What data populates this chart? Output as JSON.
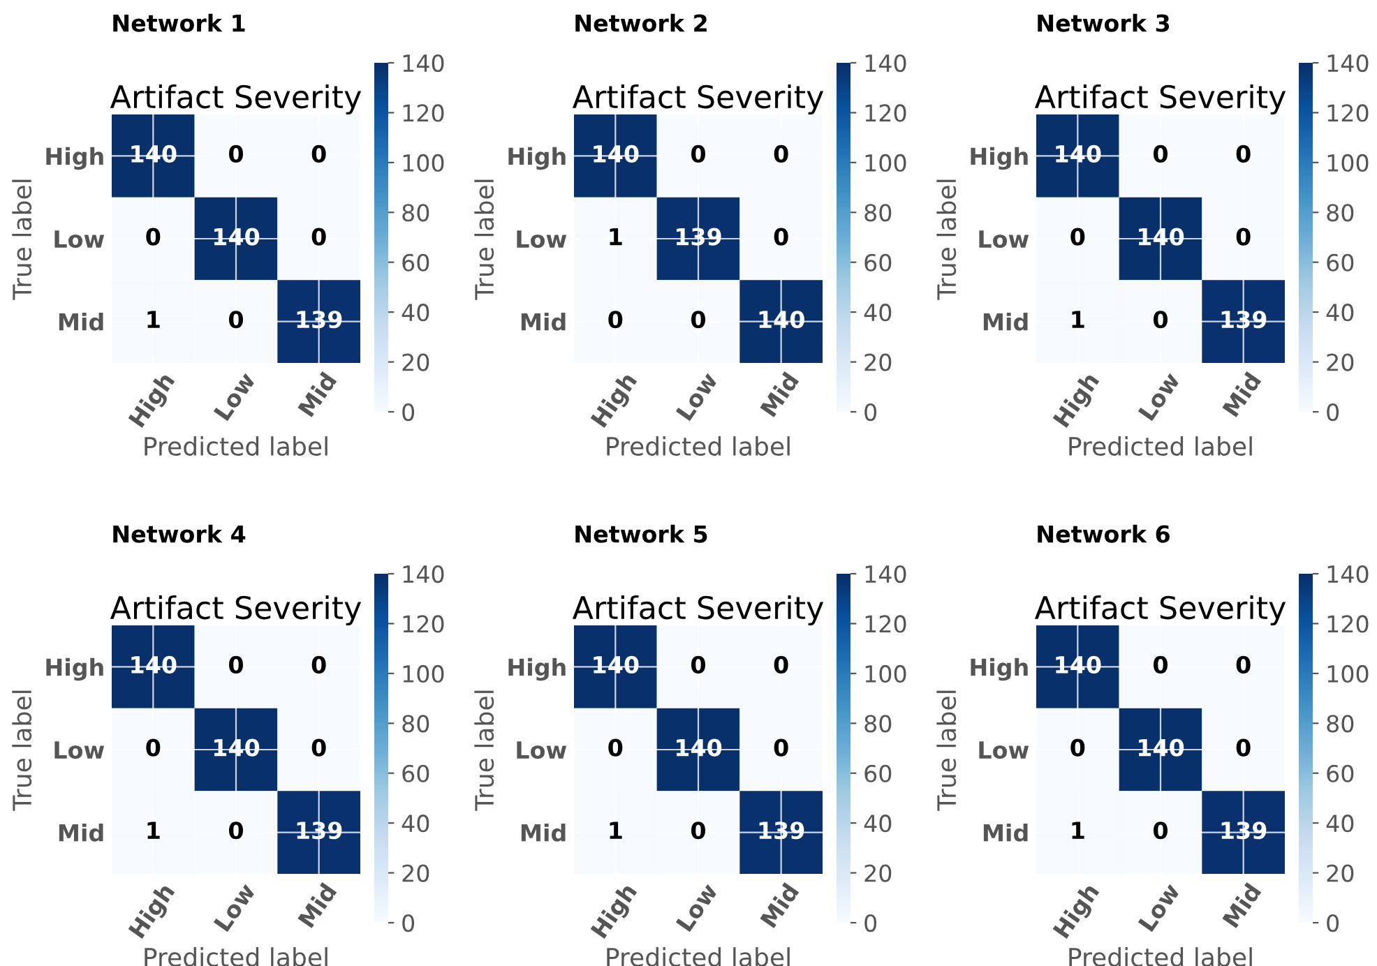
{
  "chart_data": [
    {
      "type": "heatmap",
      "title": "Network 1",
      "subtitle": "Artifact Severity",
      "xlabel": "Predicted label",
      "ylabel": "True label",
      "categories": [
        "High",
        "Low",
        "Mid"
      ],
      "y_categories": [
        "High",
        "Low",
        "Mid"
      ],
      "cells": [
        [
          140,
          0,
          0
        ],
        [
          0,
          140,
          0
        ],
        [
          1,
          0,
          139
        ]
      ],
      "clim": [
        0,
        140
      ],
      "cticks": [
        0,
        20,
        40,
        60,
        80,
        100,
        120,
        140
      ],
      "grid": true,
      "data_labels": true
    },
    {
      "type": "heatmap",
      "title": "Network 2",
      "subtitle": "Artifact Severity",
      "xlabel": "Predicted label",
      "ylabel": "True label",
      "categories": [
        "High",
        "Low",
        "Mid"
      ],
      "y_categories": [
        "High",
        "Low",
        "Mid"
      ],
      "cells": [
        [
          140,
          0,
          0
        ],
        [
          1,
          139,
          0
        ],
        [
          0,
          0,
          140
        ]
      ],
      "clim": [
        0,
        140
      ],
      "cticks": [
        0,
        20,
        40,
        60,
        80,
        100,
        120,
        140
      ],
      "grid": true,
      "data_labels": true
    },
    {
      "type": "heatmap",
      "title": "Network 3",
      "subtitle": "Artifact Severity",
      "xlabel": "Predicted label",
      "ylabel": "True label",
      "categories": [
        "High",
        "Low",
        "Mid"
      ],
      "y_categories": [
        "High",
        "Low",
        "Mid"
      ],
      "cells": [
        [
          140,
          0,
          0
        ],
        [
          0,
          140,
          0
        ],
        [
          1,
          0,
          139
        ]
      ],
      "clim": [
        0,
        140
      ],
      "cticks": [
        0,
        20,
        40,
        60,
        80,
        100,
        120,
        140
      ],
      "grid": true,
      "data_labels": true
    },
    {
      "type": "heatmap",
      "title": "Network 4",
      "subtitle": "Artifact Severity",
      "xlabel": "Predicted label",
      "ylabel": "True label",
      "categories": [
        "High",
        "Low",
        "Mid"
      ],
      "y_categories": [
        "High",
        "Low",
        "Mid"
      ],
      "cells": [
        [
          140,
          0,
          0
        ],
        [
          0,
          140,
          0
        ],
        [
          1,
          0,
          139
        ]
      ],
      "clim": [
        0,
        140
      ],
      "cticks": [
        0,
        20,
        40,
        60,
        80,
        100,
        120,
        140
      ],
      "grid": true,
      "data_labels": true
    },
    {
      "type": "heatmap",
      "title": "Network 5",
      "subtitle": "Artifact Severity",
      "xlabel": "Predicted label",
      "ylabel": "True label",
      "categories": [
        "High",
        "Low",
        "Mid"
      ],
      "y_categories": [
        "High",
        "Low",
        "Mid"
      ],
      "cells": [
        [
          140,
          0,
          0
        ],
        [
          0,
          140,
          0
        ],
        [
          1,
          0,
          139
        ]
      ],
      "clim": [
        0,
        140
      ],
      "cticks": [
        0,
        20,
        40,
        60,
        80,
        100,
        120,
        140
      ],
      "grid": true,
      "data_labels": true
    },
    {
      "type": "heatmap",
      "title": "Network 6",
      "subtitle": "Artifact Severity",
      "xlabel": "Predicted label",
      "ylabel": "True label",
      "categories": [
        "High",
        "Low",
        "Mid"
      ],
      "y_categories": [
        "High",
        "Low",
        "Mid"
      ],
      "cells": [
        [
          140,
          0,
          0
        ],
        [
          0,
          140,
          0
        ],
        [
          1,
          0,
          139
        ]
      ],
      "clim": [
        0,
        140
      ],
      "cticks": [
        0,
        20,
        40,
        60,
        80,
        100,
        120,
        140
      ],
      "grid": true,
      "data_labels": true
    }
  ]
}
